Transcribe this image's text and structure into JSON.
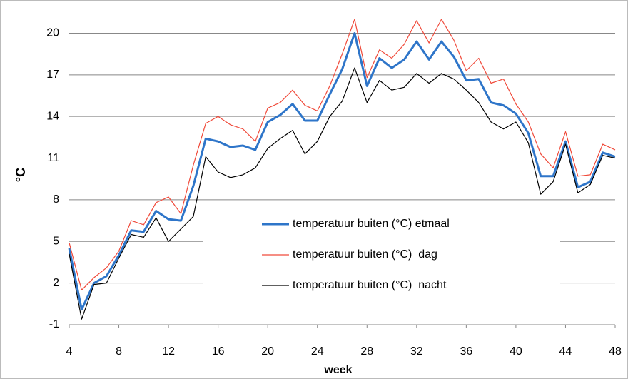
{
  "chart_data": {
    "type": "line",
    "x_label": "week",
    "y_label": "°C",
    "x": [
      4,
      5,
      6,
      7,
      8,
      9,
      10,
      11,
      12,
      13,
      14,
      15,
      16,
      17,
      18,
      19,
      20,
      21,
      22,
      23,
      24,
      25,
      26,
      27,
      28,
      29,
      30,
      31,
      32,
      33,
      34,
      35,
      36,
      37,
      38,
      39,
      40,
      41,
      42,
      43,
      44,
      45,
      46,
      47,
      48
    ],
    "series": [
      {
        "name": "temperatuur buiten (°C) etmaal",
        "color": "#2e75c9",
        "width": 3,
        "values": [
          4.5,
          0.1,
          2.0,
          2.5,
          4.0,
          5.8,
          5.7,
          7.2,
          6.6,
          6.5,
          9.0,
          12.4,
          12.2,
          11.8,
          11.9,
          11.6,
          13.6,
          14.1,
          14.9,
          13.7,
          13.7,
          15.6,
          17.4,
          20.0,
          16.2,
          18.2,
          17.5,
          18.1,
          19.4,
          18.1,
          19.4,
          18.3,
          16.6,
          16.7,
          15.0,
          14.8,
          14.2,
          12.8,
          9.7,
          9.7,
          12.2,
          8.9,
          9.3,
          11.4,
          11.1
        ]
      },
      {
        "name": "temperatuur buiten (°C)  dag",
        "color": "#f04a3a",
        "width": 1.2,
        "values": [
          4.9,
          1.5,
          2.4,
          3.1,
          4.3,
          6.5,
          6.2,
          7.8,
          8.2,
          7.0,
          10.5,
          13.5,
          14.0,
          13.4,
          13.1,
          12.2,
          14.6,
          15.0,
          15.9,
          14.8,
          14.4,
          16.2,
          18.5,
          21.0,
          16.8,
          18.8,
          18.2,
          19.2,
          20.9,
          19.3,
          21.0,
          19.5,
          17.3,
          18.2,
          16.4,
          16.7,
          14.9,
          13.6,
          11.3,
          10.3,
          12.9,
          9.7,
          9.8,
          12.0,
          11.6
        ]
      },
      {
        "name": "temperatuur buiten (°C)  nacht",
        "color": "#000000",
        "width": 1.2,
        "values": [
          4.1,
          -0.6,
          1.9,
          2.0,
          3.8,
          5.5,
          5.3,
          6.7,
          5.0,
          5.9,
          6.8,
          11.1,
          10.0,
          9.6,
          9.8,
          10.3,
          11.7,
          12.4,
          13.0,
          11.3,
          12.2,
          14.0,
          15.1,
          17.5,
          15.0,
          16.6,
          15.9,
          16.1,
          17.1,
          16.4,
          17.1,
          16.7,
          15.9,
          15.0,
          13.6,
          13.1,
          13.6,
          12.1,
          8.4,
          9.3,
          12.0,
          8.5,
          9.1,
          11.2,
          11.0
        ]
      }
    ],
    "xlim": [
      4,
      48
    ],
    "xticks": [
      4,
      8,
      12,
      16,
      20,
      24,
      28,
      32,
      36,
      40,
      44,
      48
    ],
    "ylim": [
      -1,
      21
    ],
    "yticks": [
      -1,
      2,
      5,
      8,
      11,
      14,
      17,
      20
    ],
    "grid": true,
    "legend": "center"
  }
}
